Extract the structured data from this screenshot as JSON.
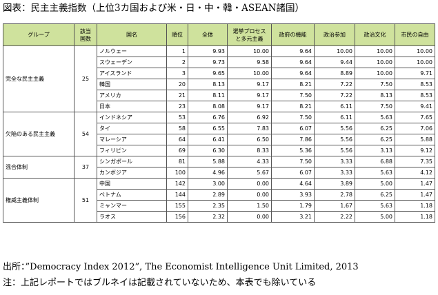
{
  "title": "図表：民主主義指数（上位3カ国および米・日・中・韓・ASEAN諸国）",
  "table": {
    "headers": [
      "グループ",
      "該当\n国数",
      "国名",
      "順位",
      "全体",
      "選挙プロセス\nと多元主義",
      "政府の機能",
      "政治参加",
      "政治文化",
      "市民の自由"
    ],
    "groups": [
      {
        "name": "完全な民主主義",
        "count": "25",
        "rows": [
          [
            "ノルウェー",
            "1",
            "9.93",
            "10.00",
            "9.64",
            "10.00",
            "10.00",
            "10.00"
          ],
          [
            "スウェーデン",
            "2",
            "9.73",
            "9.58",
            "9.64",
            "9.44",
            "10.00",
            "10.00"
          ],
          [
            "アイスランド",
            "3",
            "9.65",
            "10.00",
            "9.64",
            "8.89",
            "10.00",
            "9.71"
          ],
          [
            "韓国",
            "20",
            "8.13",
            "9.17",
            "8.21",
            "7.22",
            "7.50",
            "8.53"
          ],
          [
            "アメリカ",
            "21",
            "8.11",
            "9.17",
            "7.50",
            "7.22",
            "8.13",
            "8.53"
          ],
          [
            "日本",
            "23",
            "8.08",
            "9.17",
            "8.21",
            "6.11",
            "7.50",
            "9.41"
          ]
        ]
      },
      {
        "name": "欠陥のある民主主義",
        "count": "54",
        "rows": [
          [
            "インドネシア",
            "53",
            "6.76",
            "6.92",
            "7.50",
            "6.11",
            "5.63",
            "7.65"
          ],
          [
            "タイ",
            "58",
            "6.55",
            "7.83",
            "6.07",
            "5.56",
            "6.25",
            "7.06"
          ],
          [
            "マレーシア",
            "64",
            "6.41",
            "6.50",
            "7.86",
            "5.56",
            "6.25",
            "5.88"
          ],
          [
            "フィリピン",
            "69",
            "6.30",
            "8.33",
            "5.36",
            "5.56",
            "3.13",
            "9.12"
          ]
        ]
      },
      {
        "name": "混合体制",
        "count": "37",
        "rows": [
          [
            "シンガポール",
            "81",
            "5.88",
            "4.33",
            "7.50",
            "3.33",
            "6.88",
            "7.35"
          ],
          [
            "カンボジア",
            "100",
            "4.96",
            "5.67",
            "6.07",
            "3.33",
            "5.63",
            "4.12"
          ]
        ]
      },
      {
        "name": "権威主義体制",
        "count": "51",
        "rows": [
          [
            "中国",
            "142",
            "3.00",
            "0.00",
            "4.64",
            "3.89",
            "5.00",
            "1.47"
          ],
          [
            "ベトナム",
            "144",
            "2.89",
            "0.00",
            "3.93",
            "2.78",
            "6.25",
            "1.47"
          ],
          [
            "ミャンマー",
            "155",
            "2.35",
            "1.50",
            "1.79",
            "1.67",
            "5.63",
            "1.18"
          ],
          [
            "ラオス",
            "156",
            "2.32",
            "0.00",
            "3.21",
            "2.22",
            "5.00",
            "1.18"
          ]
        ]
      }
    ]
  },
  "footer": {
    "source": "出所：”Democracy Index 2012”, The Economist Intelligence Unit Limited, 2013",
    "note": "注：上記レポートではブルネイは記載されていないため、本表でも除いている"
  },
  "colors": {
    "header_bg": "#cfe29d",
    "border": "#555555"
  }
}
